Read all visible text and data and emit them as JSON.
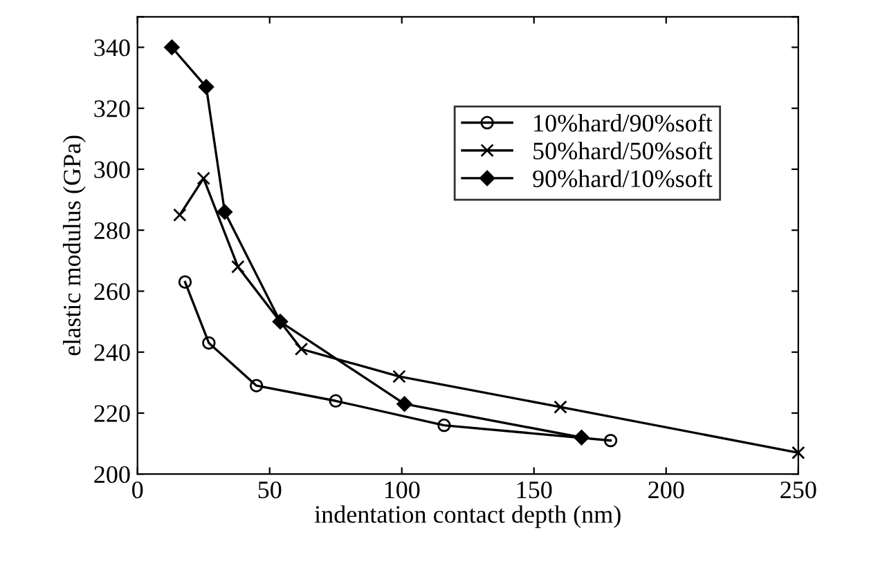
{
  "chart_data": {
    "type": "line",
    "xlabel": "indentation contact depth (nm)",
    "ylabel": "elastic modulus (GPa)",
    "xlim": [
      0,
      250
    ],
    "xticks": [
      0,
      50,
      100,
      150,
      200,
      250
    ],
    "ylim": [
      200,
      350
    ],
    "yticks": [
      200,
      220,
      240,
      260,
      280,
      300,
      320,
      340,
      {
        "value": 350,
        "label": null
      }
    ],
    "grid": false,
    "legend": "top right",
    "line_style": "solid",
    "series": [
      {
        "name": "10%hard/90%soft",
        "color": "#000000",
        "marker": "circle",
        "x": [
          18,
          27,
          45,
          75,
          116,
          179
        ],
        "values": [
          263,
          243,
          229,
          224,
          216,
          211
        ]
      },
      {
        "name": "50%hard/50%soft",
        "color": "#000000",
        "marker": "cross",
        "x": [
          16,
          25,
          38,
          62,
          99,
          160,
          250
        ],
        "values": [
          285,
          297,
          268,
          241,
          232,
          222,
          207
        ]
      },
      {
        "name": "90%hard/10%soft",
        "color": "#000000",
        "marker": "diamond",
        "x": [
          13,
          26,
          33,
          54,
          101,
          168
        ],
        "values": [
          340,
          327,
          286,
          250,
          223,
          212
        ]
      }
    ]
  }
}
